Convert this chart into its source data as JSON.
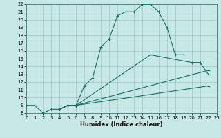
{
  "xlabel": "Humidex (Indice chaleur)",
  "bg_color": "#c8e8e8",
  "line_color": "#1a6e62",
  "grid_color": "#90bebe",
  "xlim": [
    0,
    23
  ],
  "ylim": [
    8,
    22
  ],
  "xticks": [
    0,
    1,
    2,
    3,
    4,
    5,
    6,
    7,
    8,
    9,
    10,
    11,
    12,
    13,
    14,
    15,
    16,
    17,
    18,
    19,
    20,
    21,
    22,
    23
  ],
  "yticks": [
    8,
    9,
    10,
    11,
    12,
    13,
    14,
    15,
    16,
    17,
    18,
    19,
    20,
    21,
    22
  ],
  "curve1_x": [
    0,
    1,
    2,
    3,
    4,
    5,
    6,
    7,
    8,
    9,
    10,
    11,
    12,
    13,
    14,
    15,
    16,
    17,
    18,
    19
  ],
  "curve1_y": [
    9.0,
    9.0,
    8.0,
    8.5,
    8.5,
    9.0,
    9.0,
    11.5,
    12.5,
    16.5,
    17.5,
    20.5,
    21.0,
    21.0,
    22.0,
    22.0,
    21.0,
    19.0,
    15.5,
    15.5
  ],
  "curve2_x": [
    4,
    5,
    6,
    15,
    20,
    21,
    22
  ],
  "curve2_y": [
    8.5,
    9.0,
    9.0,
    15.5,
    14.5,
    14.5,
    13.0
  ],
  "curve3_x": [
    4,
    5,
    6,
    22
  ],
  "curve3_y": [
    8.5,
    9.0,
    9.0,
    13.5
  ],
  "curve4_x": [
    4,
    5,
    6,
    22
  ],
  "curve4_y": [
    8.5,
    9.0,
    9.0,
    11.5
  ]
}
